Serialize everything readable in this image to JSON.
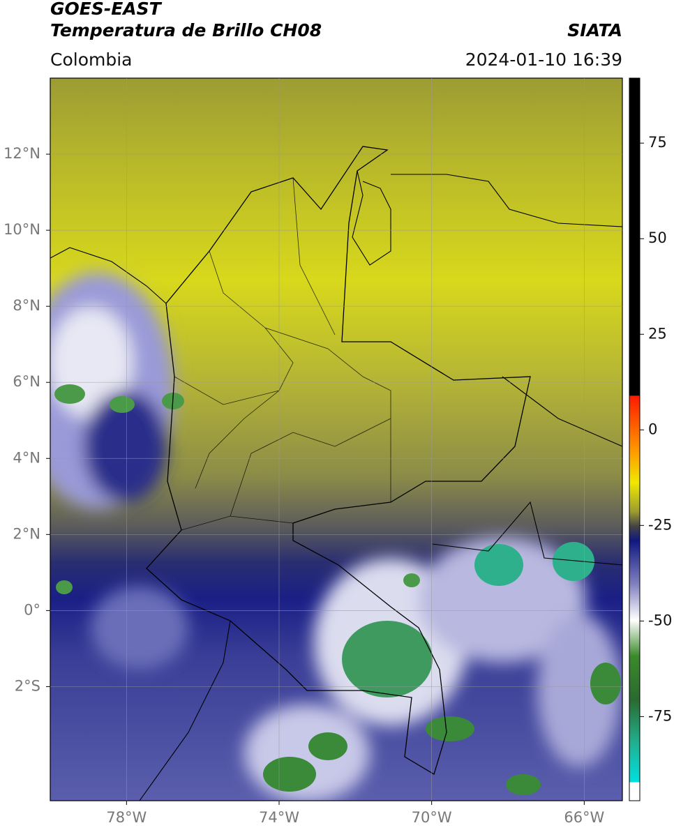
{
  "header": {
    "title": "GOES-EAST",
    "subtitle": "Temperatura de Brillo CH08",
    "organization": "SIATA",
    "region": "Colombia",
    "datetime": "2024-01-10 16:39"
  },
  "map": {
    "xlim": [
      -80,
      -65
    ],
    "ylim": [
      -5,
      14
    ],
    "xticks": [
      {
        "value": -78,
        "label": "78°W"
      },
      {
        "value": -74,
        "label": "74°W"
      },
      {
        "value": -70,
        "label": "70°W"
      },
      {
        "value": -66,
        "label": "66°W"
      }
    ],
    "yticks": [
      {
        "value": 12,
        "label": "12°N"
      },
      {
        "value": 10,
        "label": "10°N"
      },
      {
        "value": 8,
        "label": "8°N"
      },
      {
        "value": 6,
        "label": "6°N"
      },
      {
        "value": 4,
        "label": "4°N"
      },
      {
        "value": 2,
        "label": "2°N"
      },
      {
        "value": 0,
        "label": "0°"
      },
      {
        "value": -2,
        "label": "2°S"
      }
    ],
    "grid": true
  },
  "colorbar": {
    "lim": [
      -97,
      92
    ],
    "ticks": [
      75,
      50,
      25,
      0,
      -25,
      -50,
      -75
    ]
  }
}
